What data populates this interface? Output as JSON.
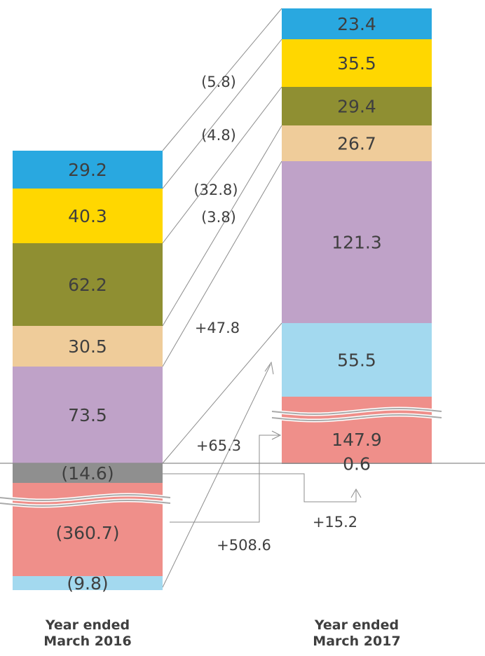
{
  "chart_data": {
    "type": "bar",
    "subtype": "stacked-waterfall-comparison",
    "categories": [
      "Year ended\nMarch 2016",
      "Year ended\nMarch 2017"
    ],
    "category_lines": [
      [
        "Year ended",
        "March 2016"
      ],
      [
        "Year ended",
        "March 2017"
      ]
    ],
    "series": [
      {
        "label_2016": "29.2",
        "label_2017": "23.4",
        "v2016": 29.2,
        "v2017": 23.4,
        "color": "#29a8e0",
        "delta": "(5.8)"
      },
      {
        "label_2016": "40.3",
        "label_2017": "35.5",
        "v2016": 40.3,
        "v2017": 35.5,
        "color": "#ffd700",
        "delta": "(4.8)"
      },
      {
        "label_2016": "62.2",
        "label_2017": "29.4",
        "v2016": 62.2,
        "v2017": 29.4,
        "color": "#8f8f32",
        "delta": "(32.8)"
      },
      {
        "label_2016": "30.5",
        "label_2017": "26.7",
        "v2016": 30.5,
        "v2017": 26.7,
        "color": "#efcc9a",
        "delta": "(3.8)"
      },
      {
        "label_2016": "73.5",
        "label_2017": "121.3",
        "v2016": 73.5,
        "v2017": 121.3,
        "color": "#bfa2c8",
        "delta": "+47.8"
      },
      {
        "label_2016": "(9.8)",
        "label_2017": "55.5",
        "v2016": -9.8,
        "v2017": 55.5,
        "color": "#a3d9ef",
        "delta": "+65.3"
      },
      {
        "label_2016": "(360.7)",
        "label_2017": "147.9",
        "v2016": -360.7,
        "v2017": 147.9,
        "color": "#ef8f8a",
        "delta": "+508.6"
      },
      {
        "label_2016": "(14.6)",
        "label_2017": "0.6",
        "v2016": -14.6,
        "v2017": 0.6,
        "color": "#8f8f8f",
        "delta": "+15.2"
      }
    ],
    "axis_break": true,
    "legend": "none",
    "grid": false
  }
}
